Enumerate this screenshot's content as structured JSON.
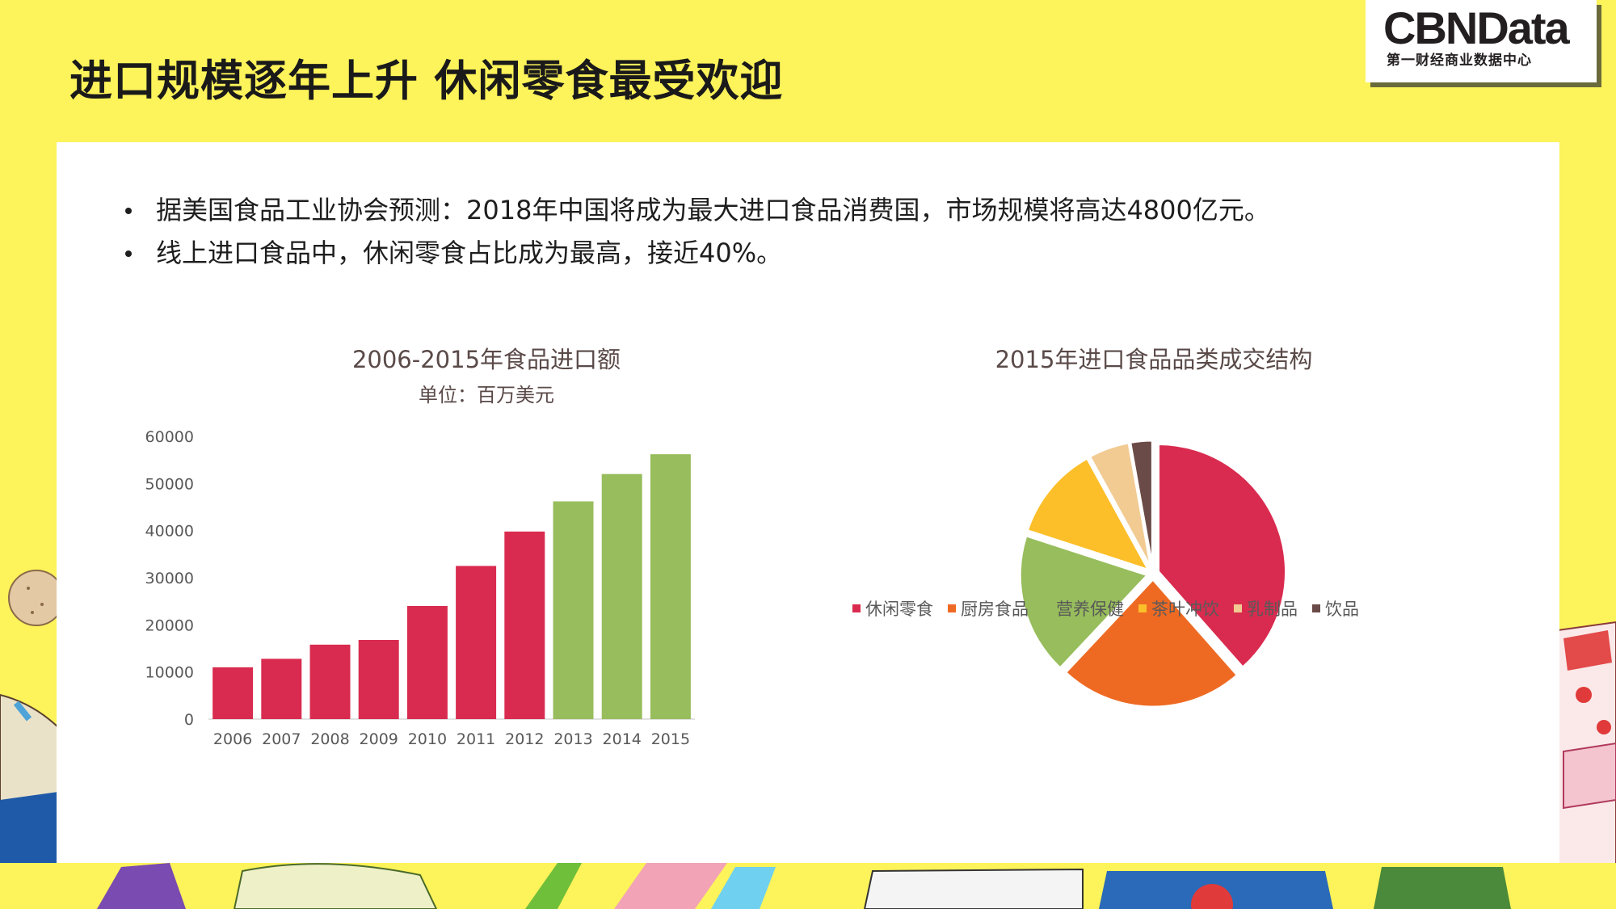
{
  "slide": {
    "title": "进口规模逐年上升 休闲零食最受欢迎",
    "bullets": [
      "据美国食品工业协会预测：2018年中国将成为最大进口食品消费国，市场规模将高达4800亿元。",
      "线上进口食品中，休闲零食占比成为最高，接近40%。"
    ]
  },
  "logo": {
    "main": "CBNData",
    "sub": "第一财经商业数据中心"
  },
  "colors": {
    "background": "#fdf35a",
    "red": "#d92b4f",
    "green": "#97bd5c"
  },
  "chart_data": [
    {
      "type": "bar",
      "title": "2006-2015年食品进口额",
      "subtitle": "单位：百万美元",
      "categories": [
        "2006",
        "2007",
        "2008",
        "2009",
        "2010",
        "2011",
        "2012",
        "2013",
        "2014",
        "2015"
      ],
      "values": [
        11000,
        12800,
        15800,
        16800,
        24000,
        32500,
        39800,
        46200,
        52000,
        56200
      ],
      "bar_colors": [
        "#d92b4f",
        "#d92b4f",
        "#d92b4f",
        "#d92b4f",
        "#d92b4f",
        "#d92b4f",
        "#d92b4f",
        "#97bd5c",
        "#97bd5c",
        "#97bd5c"
      ],
      "ylim": [
        0,
        60000
      ],
      "yticks": [
        "0",
        "10000",
        "20000",
        "30000",
        "40000",
        "50000",
        "60000"
      ],
      "grid": false
    },
    {
      "type": "pie",
      "title": "2015年进口食品品类成交结构",
      "labels": [
        "休闲零食",
        "厨房食品",
        "营养保健",
        "茶叶冲饮",
        "乳制品",
        "饮品"
      ],
      "values": [
        38.5,
        23.5,
        18.0,
        12.0,
        5.2,
        2.8
      ],
      "colors": [
        "#d92b4f",
        "#ee6a23",
        "#97bd5c",
        "#fcbf2a",
        "#f2cb93",
        "#6b4b47"
      ],
      "legend": "bottom",
      "exploded": true
    }
  ]
}
